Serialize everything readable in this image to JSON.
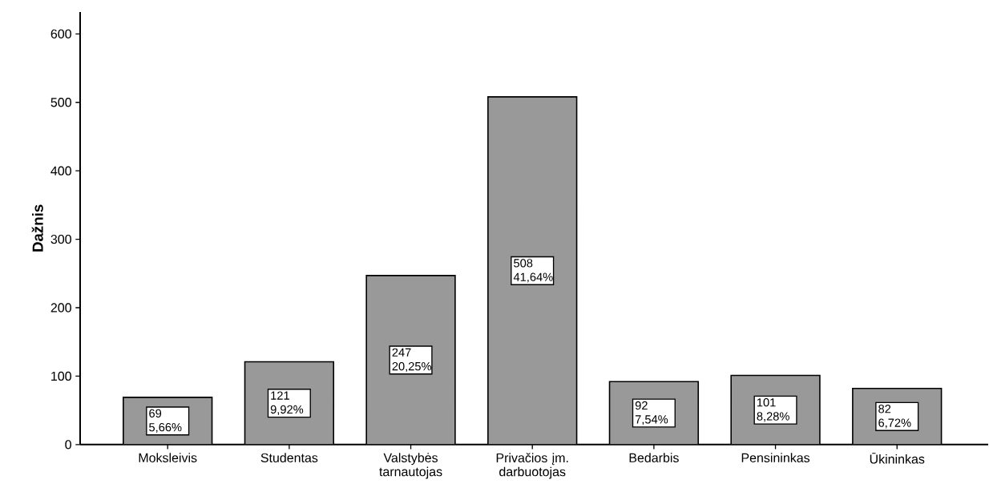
{
  "chart_data": {
    "type": "bar",
    "ylabel": "Dažnis",
    "categories": [
      "Moksleivis",
      "Studentas",
      "Valstybės tarnautojas",
      "Privačios įm. darbuotojas",
      "Bedarbis",
      "Pensininkas",
      "Ūkininkas"
    ],
    "values": [
      69,
      121,
      247,
      508,
      92,
      101,
      82
    ],
    "value_labels": [
      "69 5,66%",
      "121 9,92%",
      "247 20,25%",
      "508 41,64%",
      "92 7,54%",
      "101 8,28%",
      "82 6,72%"
    ],
    "color": "#999999",
    "ylim": [
      0,
      632
    ],
    "yticks": [
      0,
      100,
      200,
      300,
      400,
      500,
      600
    ]
  }
}
